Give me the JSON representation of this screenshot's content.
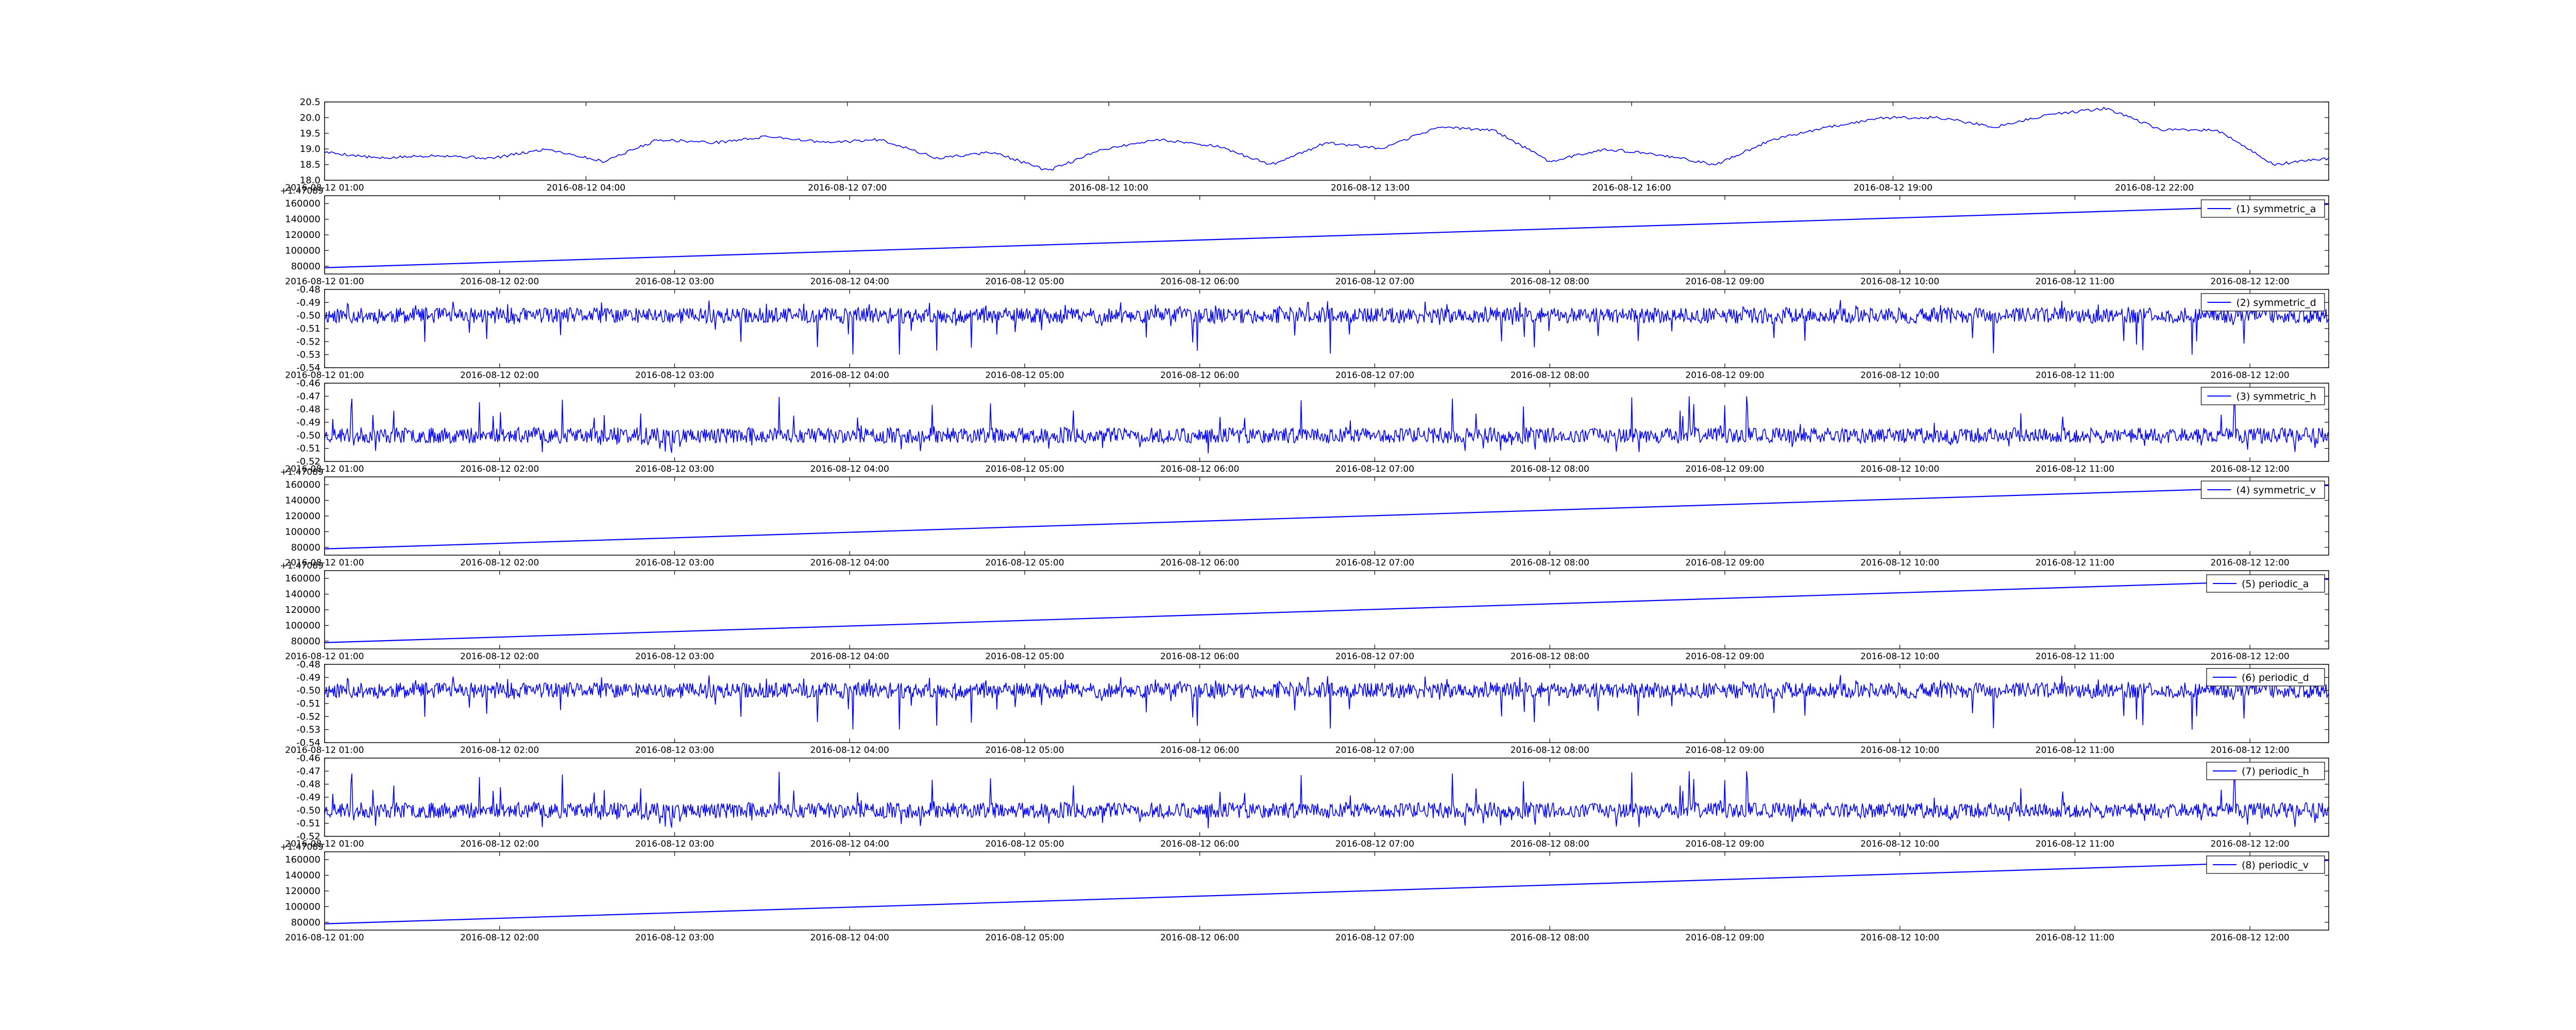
{
  "figure": {
    "background": "#ffffff",
    "line_color": "#0000ff",
    "axes_color": "#000000"
  },
  "chart_data": [
    {
      "type": "line",
      "series": [],
      "x_ticks": [
        "2016-08-12 01:00",
        "2016-08-12 04:00",
        "2016-08-12 07:00",
        "2016-08-12 10:00",
        "2016-08-12 13:00",
        "2016-08-12 16:00",
        "2016-08-12 19:00",
        "2016-08-12 22:00"
      ],
      "y_ticks": [
        "18.0",
        "18.5",
        "19.0",
        "19.5",
        "20.0",
        "20.5"
      ],
      "ylim": [
        18.0,
        20.5
      ],
      "offset_text": "",
      "legend": null,
      "profile": [
        18.9,
        18.7,
        18.8,
        18.7,
        19.0,
        18.6,
        19.3,
        19.2,
        19.4,
        19.2,
        19.3,
        18.7,
        18.9,
        18.3,
        19.0,
        19.3,
        19.1,
        18.5,
        19.2,
        19.0,
        19.7,
        19.6,
        18.6,
        19.0,
        18.8,
        18.5,
        19.3,
        19.7,
        20.0,
        20.0,
        19.7,
        20.1,
        20.3,
        19.6,
        19.6,
        18.5,
        18.7
      ]
    },
    {
      "type": "line",
      "series": [
        {
          "name": "(1) symmetric_a"
        }
      ],
      "x_ticks": [
        "2016-08-12 01:00",
        "2016-08-12 02:00",
        "2016-08-12 03:00",
        "2016-08-12 04:00",
        "2016-08-12 05:00",
        "2016-08-12 06:00",
        "2016-08-12 07:00",
        "2016-08-12 08:00",
        "2016-08-12 09:00",
        "2016-08-12 10:00",
        "2016-08-12 11:00",
        "2016-08-12 12:00"
      ],
      "y_ticks": [
        "80000",
        "100000",
        "120000",
        "140000",
        "160000"
      ],
      "ylim": [
        70000,
        170000
      ],
      "offset_text": "+1.47089",
      "legend": "upper right",
      "line": [
        78000,
        159000
      ]
    },
    {
      "type": "line",
      "series": [
        {
          "name": "(2) symmetric_d"
        }
      ],
      "x_ticks": [
        "2016-08-12 01:00",
        "2016-08-12 02:00",
        "2016-08-12 03:00",
        "2016-08-12 04:00",
        "2016-08-12 05:00",
        "2016-08-12 06:00",
        "2016-08-12 07:00",
        "2016-08-12 08:00",
        "2016-08-12 09:00",
        "2016-08-12 10:00",
        "2016-08-12 11:00",
        "2016-08-12 12:00"
      ],
      "y_ticks": [
        "-0.54",
        "-0.53",
        "-0.52",
        "-0.51",
        "-0.50",
        "-0.49",
        "-0.48"
      ],
      "ylim": [
        -0.54,
        -0.48
      ],
      "offset_text": "",
      "legend": "upper right",
      "noise": {
        "center": -0.5,
        "amp": 0.006,
        "spike_up": 0.012,
        "spike_down": 0.03,
        "seed": 11
      }
    },
    {
      "type": "line",
      "series": [
        {
          "name": "(3) symmetric_h"
        }
      ],
      "x_ticks": [
        "2016-08-12 01:00",
        "2016-08-12 02:00",
        "2016-08-12 03:00",
        "2016-08-12 04:00",
        "2016-08-12 05:00",
        "2016-08-12 06:00",
        "2016-08-12 07:00",
        "2016-08-12 08:00",
        "2016-08-12 09:00",
        "2016-08-12 10:00",
        "2016-08-12 11:00",
        "2016-08-12 12:00"
      ],
      "y_ticks": [
        "-0.52",
        "-0.51",
        "-0.50",
        "-0.49",
        "-0.48",
        "-0.47",
        "-0.46"
      ],
      "ylim": [
        -0.52,
        -0.46
      ],
      "offset_text": "",
      "legend": "upper right",
      "noise": {
        "center": -0.5,
        "amp": 0.006,
        "spike_up": 0.03,
        "spike_down": 0.014,
        "seed": 23
      }
    },
    {
      "type": "line",
      "series": [
        {
          "name": "(4) symmetric_v"
        }
      ],
      "x_ticks": [
        "2016-08-12 01:00",
        "2016-08-12 02:00",
        "2016-08-12 03:00",
        "2016-08-12 04:00",
        "2016-08-12 05:00",
        "2016-08-12 06:00",
        "2016-08-12 07:00",
        "2016-08-12 08:00",
        "2016-08-12 09:00",
        "2016-08-12 10:00",
        "2016-08-12 11:00",
        "2016-08-12 12:00"
      ],
      "y_ticks": [
        "80000",
        "100000",
        "120000",
        "140000",
        "160000"
      ],
      "ylim": [
        70000,
        170000
      ],
      "offset_text": "+1.47089",
      "legend": "upper right",
      "line": [
        78000,
        159000
      ]
    },
    {
      "type": "line",
      "series": [
        {
          "name": "(5) periodic_a"
        }
      ],
      "x_ticks": [
        "2016-08-12 01:00",
        "2016-08-12 02:00",
        "2016-08-12 03:00",
        "2016-08-12 04:00",
        "2016-08-12 05:00",
        "2016-08-12 06:00",
        "2016-08-12 07:00",
        "2016-08-12 08:00",
        "2016-08-12 09:00",
        "2016-08-12 10:00",
        "2016-08-12 11:00",
        "2016-08-12 12:00"
      ],
      "y_ticks": [
        "80000",
        "100000",
        "120000",
        "140000",
        "160000"
      ],
      "ylim": [
        70000,
        170000
      ],
      "offset_text": "+1.47089",
      "legend": "upper right",
      "line": [
        78000,
        159000
      ]
    },
    {
      "type": "line",
      "series": [
        {
          "name": "(6) periodic_d"
        }
      ],
      "x_ticks": [
        "2016-08-12 01:00",
        "2016-08-12 02:00",
        "2016-08-12 03:00",
        "2016-08-12 04:00",
        "2016-08-12 05:00",
        "2016-08-12 06:00",
        "2016-08-12 07:00",
        "2016-08-12 08:00",
        "2016-08-12 09:00",
        "2016-08-12 10:00",
        "2016-08-12 11:00",
        "2016-08-12 12:00"
      ],
      "y_ticks": [
        "-0.54",
        "-0.53",
        "-0.52",
        "-0.51",
        "-0.50",
        "-0.49",
        "-0.48"
      ],
      "ylim": [
        -0.54,
        -0.48
      ],
      "offset_text": "",
      "legend": "upper right",
      "noise": {
        "center": -0.5,
        "amp": 0.006,
        "spike_up": 0.012,
        "spike_down": 0.03,
        "seed": 11
      }
    },
    {
      "type": "line",
      "series": [
        {
          "name": "(7) periodic_h"
        }
      ],
      "x_ticks": [
        "2016-08-12 01:00",
        "2016-08-12 02:00",
        "2016-08-12 03:00",
        "2016-08-12 04:00",
        "2016-08-12 05:00",
        "2016-08-12 06:00",
        "2016-08-12 07:00",
        "2016-08-12 08:00",
        "2016-08-12 09:00",
        "2016-08-12 10:00",
        "2016-08-12 11:00",
        "2016-08-12 12:00"
      ],
      "y_ticks": [
        "-0.52",
        "-0.51",
        "-0.50",
        "-0.49",
        "-0.48",
        "-0.47",
        "-0.46"
      ],
      "ylim": [
        -0.52,
        -0.46
      ],
      "offset_text": "",
      "legend": "upper right",
      "noise": {
        "center": -0.5,
        "amp": 0.006,
        "spike_up": 0.03,
        "spike_down": 0.014,
        "seed": 23
      }
    },
    {
      "type": "line",
      "series": [
        {
          "name": "(8) periodic_v"
        }
      ],
      "x_ticks": [
        "2016-08-12 01:00",
        "2016-08-12 02:00",
        "2016-08-12 03:00",
        "2016-08-12 04:00",
        "2016-08-12 05:00",
        "2016-08-12 06:00",
        "2016-08-12 07:00",
        "2016-08-12 08:00",
        "2016-08-12 09:00",
        "2016-08-12 10:00",
        "2016-08-12 11:00",
        "2016-08-12 12:00"
      ],
      "y_ticks": [
        "80000",
        "100000",
        "120000",
        "140000",
        "160000"
      ],
      "ylim": [
        70000,
        170000
      ],
      "offset_text": "+1.47089",
      "legend": "upper right",
      "line": [
        78000,
        159000
      ]
    }
  ]
}
